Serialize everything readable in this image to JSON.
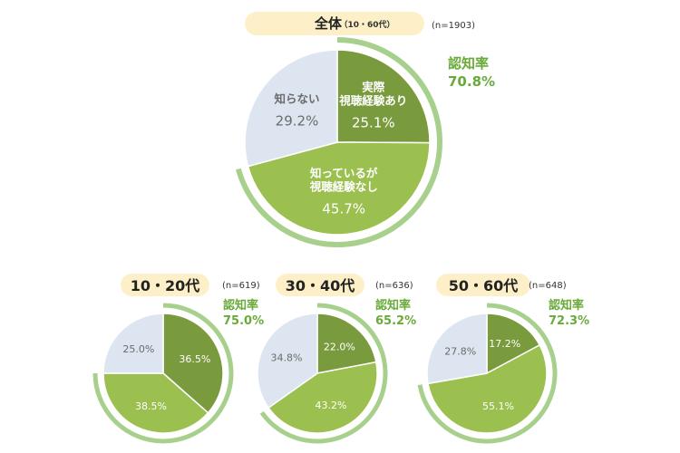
{
  "colors": {
    "dark_green": "#7a9a3e",
    "light_green": "#9cc04f",
    "gray_blue": "#dde6f0",
    "ring": "#a8d08d",
    "accent_text": "#6aaa3a",
    "pill": "#fdf0c8",
    "label_text": "#6b6b6b"
  },
  "chart_data": [
    {
      "type": "pie",
      "id": "overall",
      "title": "全体",
      "title_sub": "（10・60代）",
      "n_label": "(n=1903)",
      "awareness_label": "認知率",
      "awareness_value": "70.8%",
      "awareness": 70.8,
      "slices": [
        {
          "label_lines": [
            "実際",
            "視聴経験あり"
          ],
          "value": 25.1,
          "value_label": "25.1%",
          "color": "dark_green"
        },
        {
          "label_lines": [
            "知っているが",
            "視聴経験なし"
          ],
          "value": 45.7,
          "value_label": "45.7%",
          "color": "light_green"
        },
        {
          "label_lines": [
            "知らない"
          ],
          "value": 29.2,
          "value_label": "29.2%",
          "color": "gray_blue"
        }
      ]
    },
    {
      "type": "pie",
      "id": "age10_20",
      "title": "10・20代",
      "n_label": "(n=619)",
      "awareness_label": "認知率",
      "awareness_value": "75.0%",
      "awareness": 75.0,
      "slices": [
        {
          "value": 36.5,
          "value_label": "36.5%",
          "color": "dark_green"
        },
        {
          "value": 38.5,
          "value_label": "38.5%",
          "color": "light_green"
        },
        {
          "value": 25.0,
          "value_label": "25.0%",
          "color": "gray_blue"
        }
      ]
    },
    {
      "type": "pie",
      "id": "age30_40",
      "title": "30・40代",
      "n_label": "(n=636)",
      "awareness_label": "認知率",
      "awareness_value": "65.2%",
      "awareness": 65.2,
      "slices": [
        {
          "value": 22.0,
          "value_label": "22.0%",
          "color": "dark_green"
        },
        {
          "value": 43.2,
          "value_label": "43.2%",
          "color": "light_green"
        },
        {
          "value": 34.8,
          "value_label": "34.8%",
          "color": "gray_blue"
        }
      ]
    },
    {
      "type": "pie",
      "id": "age50_60",
      "title": "50・60代",
      "n_label": "(n=648)",
      "awareness_label": "認知率",
      "awareness_value": "72.3%",
      "awareness": 72.3,
      "slices": [
        {
          "value": 17.2,
          "value_label": "17.2%",
          "color": "dark_green"
        },
        {
          "value": 55.1,
          "value_label": "55.1%",
          "color": "light_green"
        },
        {
          "value": 27.8,
          "value_label": "27.8%",
          "color": "gray_blue"
        }
      ]
    }
  ]
}
